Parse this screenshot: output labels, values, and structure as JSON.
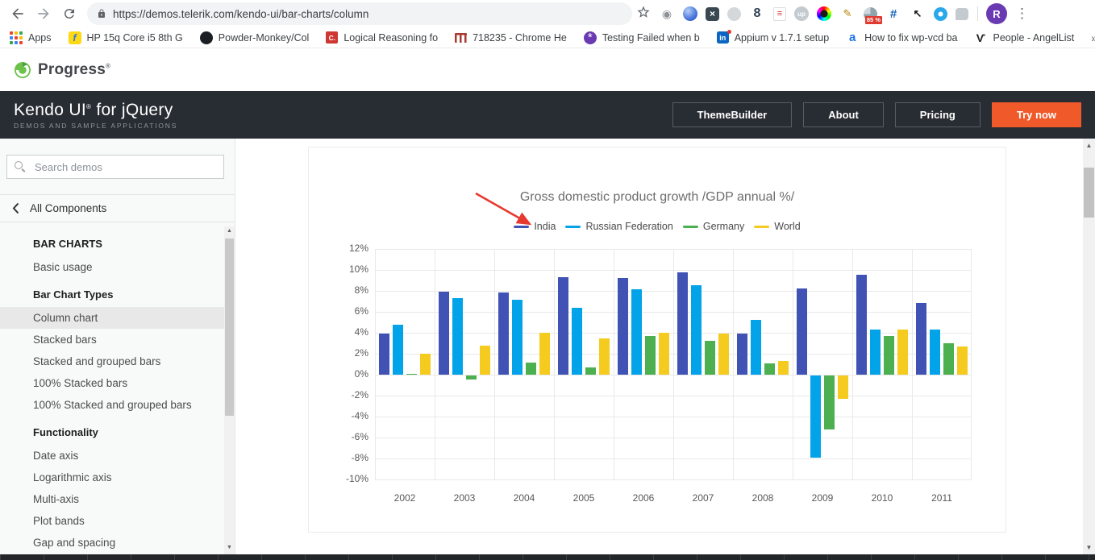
{
  "browser": {
    "url": "https://demos.telerik.com/kendo-ui/bar-charts/column",
    "profile_initial": "R",
    "overflow_chevron": "»",
    "extensions": [
      {
        "name": "camera-extension-icon",
        "glyph": "◉"
      },
      {
        "name": "globe-extension-icon",
        "glyph": ""
      },
      {
        "name": "x-extension-icon",
        "glyph": "×"
      },
      {
        "name": "oval-extension-icon",
        "glyph": ""
      },
      {
        "name": "figure8-extension-icon",
        "glyph": "8"
      },
      {
        "name": "seo-extension-icon",
        "glyph": "≡"
      },
      {
        "name": "up-extension-icon",
        "glyph": "up"
      },
      {
        "name": "colorwheel-extension-icon",
        "glyph": ""
      },
      {
        "name": "notes-extension-icon",
        "glyph": "✎"
      },
      {
        "name": "pie-extension-icon",
        "glyph": "",
        "badge": "85 %"
      },
      {
        "name": "crop-extension-icon",
        "glyph": "#"
      },
      {
        "name": "xycursor-extension-icon",
        "glyph": "↖"
      },
      {
        "name": "eye-extension-icon",
        "glyph": ""
      },
      {
        "name": "chat-extension-icon",
        "glyph": ""
      }
    ],
    "bookmarks": [
      {
        "icon": "apps-grid-icon",
        "glyph": "",
        "label": "Apps"
      },
      {
        "icon": "flipkart-icon",
        "glyph": "f",
        "label": "HP 15q Core i5 8th G"
      },
      {
        "icon": "github-icon",
        "glyph": "",
        "label": "Powder-Monkey/Col"
      },
      {
        "icon": "c-red-icon",
        "glyph": "C.",
        "label": "Logical Reasoning fo"
      },
      {
        "icon": "monorail-icon",
        "glyph": "",
        "label": "718235 - Chrome He"
      },
      {
        "icon": "swirl-icon",
        "glyph": "*",
        "label": "Testing Failed when b"
      },
      {
        "icon": "linkedin-icon",
        "glyph": "in",
        "label": "Appium v 1.7.1 setup"
      },
      {
        "icon": "a-blue-icon",
        "glyph": "a",
        "label": "How to fix wp-vcd ba"
      },
      {
        "icon": "angellist-icon",
        "glyph": "Ѵ",
        "label": "People - AngelList"
      }
    ]
  },
  "site": {
    "progress_brand": "Progress",
    "progress_reg": "®",
    "brand": {
      "title": "Kendo UI",
      "reg": "®",
      "suffix": "for jQuery",
      "subtitle": "DEMOS AND SAMPLE APPLICATIONS"
    },
    "nav": [
      {
        "label": "ThemeBuilder",
        "style": "ghost"
      },
      {
        "label": "About",
        "style": "ghost"
      },
      {
        "label": "Pricing",
        "style": "ghost"
      },
      {
        "label": "Try now",
        "style": "solid"
      }
    ],
    "colors": {
      "accent_orange": "#f0592a",
      "header_bg": "#282c33"
    }
  },
  "sidebar": {
    "search_placeholder": "Search demos",
    "back_label": "All Components",
    "sections": [
      {
        "header": "BAR CHARTS",
        "items": [
          {
            "label": "Basic usage"
          }
        ]
      },
      {
        "header": "Bar Chart Types",
        "items": [
          {
            "label": "Column chart",
            "selected": true
          },
          {
            "label": "Stacked bars"
          },
          {
            "label": "Stacked and grouped bars"
          },
          {
            "label": "100% Stacked bars"
          },
          {
            "label": "100% Stacked and grouped bars"
          }
        ]
      },
      {
        "header": "Functionality",
        "items": [
          {
            "label": "Date axis"
          },
          {
            "label": "Logarithmic axis"
          },
          {
            "label": "Multi-axis"
          },
          {
            "label": "Plot bands"
          },
          {
            "label": "Gap and spacing"
          }
        ]
      }
    ],
    "selected_bg": "#e8e8e8"
  },
  "chart_data": {
    "type": "bar",
    "title": "Gross domestic product growth /GDP annual %/",
    "categories": [
      "2002",
      "2003",
      "2004",
      "2005",
      "2006",
      "2007",
      "2008",
      "2009",
      "2010",
      "2011"
    ],
    "series": [
      {
        "name": "India",
        "color": "#4053b5",
        "values": [
          3.907,
          7.943,
          7.848,
          9.284,
          9.263,
          9.801,
          3.89,
          8.238,
          9.552,
          6.855
        ]
      },
      {
        "name": "Russian Federation",
        "color": "#03a3ea",
        "values": [
          4.743,
          7.295,
          7.175,
          6.376,
          8.153,
          8.535,
          5.247,
          -7.832,
          4.3,
          4.3
        ]
      },
      {
        "name": "Germany",
        "color": "#4caf50",
        "values": [
          0.01,
          -0.375,
          1.161,
          0.684,
          3.7,
          3.269,
          1.083,
          -5.127,
          3.69,
          2.995
        ]
      },
      {
        "name": "World",
        "color": "#f5cb20",
        "values": [
          1.988,
          2.733,
          3.994,
          3.464,
          4.001,
          3.939,
          1.333,
          -2.245,
          4.339,
          2.727
        ]
      }
    ],
    "ylim": [
      -10,
      12
    ],
    "tick_step": 2,
    "y_suffix": "%",
    "grid": true,
    "legend_position": "top",
    "annotation": {
      "type": "arrow",
      "color": "#e8392f",
      "points_to": "India legend marker"
    }
  }
}
